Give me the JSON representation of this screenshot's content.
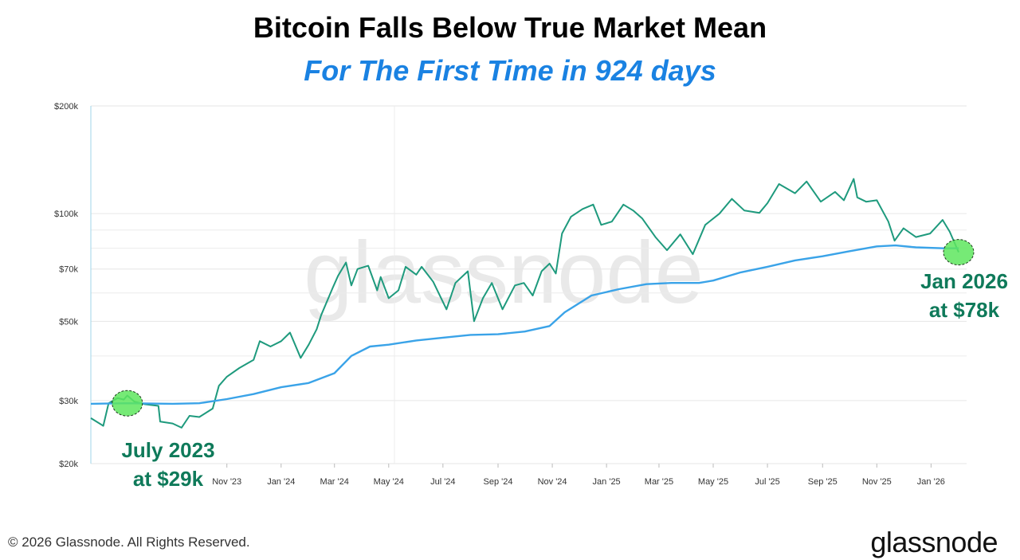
{
  "title": "Bitcoin Falls Below True Market Mean",
  "subtitle": "For The First Time in 924 days",
  "footer": {
    "copyright": "© 2026 Glassnode. All Rights Reserved.",
    "brand": "glassnode",
    "watermark": "glassnode"
  },
  "annotations": [
    {
      "text_line1": "July 2023",
      "text_line2": "at $29k",
      "x": "2023-07-12",
      "y": 29500
    },
    {
      "text_line1": "Jan 2026",
      "text_line2": "at $78k",
      "x": "2026-02-01",
      "y": 78000
    }
  ],
  "colors": {
    "price": "#1e9a7d",
    "mean": "#3aa3e8",
    "subtitle": "#1a82e2",
    "annotation_text": "#0f7a5a",
    "highlight": "#5ee65e"
  },
  "chart_data": {
    "type": "line",
    "y_scale": "log",
    "ylim": [
      20000,
      200000
    ],
    "xlim": [
      "2023-06-01",
      "2026-02-10"
    ],
    "grid": "horizontal",
    "y_ticks": [
      {
        "value": 200000,
        "label": "$200k"
      },
      {
        "value": 100000,
        "label": "$100k"
      },
      {
        "value": 70000,
        "label": "$70k"
      },
      {
        "value": 50000,
        "label": "$50k"
      },
      {
        "value": 30000,
        "label": "$30k"
      },
      {
        "value": 20000,
        "label": "$20k"
      }
    ],
    "y_extra_gridlines": [
      90000,
      80000,
      60000,
      40000
    ],
    "x_ticks": [
      {
        "date": "2023-11-01",
        "label": "Nov '23"
      },
      {
        "date": "2024-01-01",
        "label": "Jan '24"
      },
      {
        "date": "2024-03-01",
        "label": "Mar '24"
      },
      {
        "date": "2024-05-01",
        "label": "May '24"
      },
      {
        "date": "2024-07-01",
        "label": "Jul '24"
      },
      {
        "date": "2024-09-01",
        "label": "Sep '24"
      },
      {
        "date": "2024-11-01",
        "label": "Nov '24"
      },
      {
        "date": "2025-01-01",
        "label": "Jan '25"
      },
      {
        "date": "2025-03-01",
        "label": "Mar '25"
      },
      {
        "date": "2025-05-01",
        "label": "May '25"
      },
      {
        "date": "2025-07-01",
        "label": "Jul '25"
      },
      {
        "date": "2025-09-01",
        "label": "Sep '25"
      },
      {
        "date": "2025-11-01",
        "label": "Nov '25"
      },
      {
        "date": "2026-01-01",
        "label": "Jan '26"
      }
    ],
    "series": [
      {
        "key": "price",
        "points": [
          [
            "2023-06-01",
            26800
          ],
          [
            "2023-06-15",
            25500
          ],
          [
            "2023-06-21",
            29500
          ],
          [
            "2023-07-01",
            30500
          ],
          [
            "2023-07-08",
            30200
          ],
          [
            "2023-07-12",
            31000
          ],
          [
            "2023-07-20",
            29800
          ],
          [
            "2023-08-01",
            29300
          ],
          [
            "2023-08-16",
            29000
          ],
          [
            "2023-08-18",
            26200
          ],
          [
            "2023-09-01",
            25900
          ],
          [
            "2023-09-11",
            25200
          ],
          [
            "2023-09-20",
            27200
          ],
          [
            "2023-10-01",
            27000
          ],
          [
            "2023-10-16",
            28500
          ],
          [
            "2023-10-23",
            33000
          ],
          [
            "2023-11-01",
            35000
          ],
          [
            "2023-11-15",
            37000
          ],
          [
            "2023-12-01",
            39000
          ],
          [
            "2023-12-08",
            44000
          ],
          [
            "2023-12-20",
            42500
          ],
          [
            "2024-01-01",
            44000
          ],
          [
            "2024-01-11",
            46500
          ],
          [
            "2024-01-23",
            39500
          ],
          [
            "2024-02-01",
            43000
          ],
          [
            "2024-02-10",
            47500
          ],
          [
            "2024-02-15",
            52000
          ],
          [
            "2024-02-28",
            62000
          ],
          [
            "2024-03-05",
            67000
          ],
          [
            "2024-03-14",
            73000
          ],
          [
            "2024-03-20",
            63000
          ],
          [
            "2024-03-27",
            70000
          ],
          [
            "2024-04-08",
            71500
          ],
          [
            "2024-04-18",
            61000
          ],
          [
            "2024-04-22",
            66500
          ],
          [
            "2024-05-01",
            58000
          ],
          [
            "2024-05-12",
            61000
          ],
          [
            "2024-05-20",
            71000
          ],
          [
            "2024-06-01",
            67500
          ],
          [
            "2024-06-07",
            71000
          ],
          [
            "2024-06-20",
            64500
          ],
          [
            "2024-07-05",
            54000
          ],
          [
            "2024-07-15",
            64000
          ],
          [
            "2024-07-29",
            69000
          ],
          [
            "2024-08-05",
            50000
          ],
          [
            "2024-08-15",
            58000
          ],
          [
            "2024-08-25",
            64000
          ],
          [
            "2024-09-06",
            54000
          ],
          [
            "2024-09-20",
            63000
          ],
          [
            "2024-09-30",
            64000
          ],
          [
            "2024-10-10",
            59000
          ],
          [
            "2024-10-20",
            69000
          ],
          [
            "2024-10-29",
            72500
          ],
          [
            "2024-11-05",
            68000
          ],
          [
            "2024-11-12",
            88000
          ],
          [
            "2024-11-22",
            98000
          ],
          [
            "2024-12-05",
            103000
          ],
          [
            "2024-12-17",
            106000
          ],
          [
            "2024-12-26",
            93000
          ],
          [
            "2025-01-07",
            95000
          ],
          [
            "2025-01-20",
            106000
          ],
          [
            "2025-01-31",
            102000
          ],
          [
            "2025-02-10",
            97000
          ],
          [
            "2025-02-25",
            86000
          ],
          [
            "2025-03-10",
            79000
          ],
          [
            "2025-03-25",
            87500
          ],
          [
            "2025-04-08",
            77000
          ],
          [
            "2025-04-22",
            93000
          ],
          [
            "2025-05-08",
            100000
          ],
          [
            "2025-05-22",
            110000
          ],
          [
            "2025-06-05",
            102000
          ],
          [
            "2025-06-22",
            100500
          ],
          [
            "2025-07-01",
            107000
          ],
          [
            "2025-07-14",
            121000
          ],
          [
            "2025-08-01",
            114000
          ],
          [
            "2025-08-14",
            123000
          ],
          [
            "2025-08-30",
            108000
          ],
          [
            "2025-09-15",
            115000
          ],
          [
            "2025-09-25",
            109000
          ],
          [
            "2025-10-06",
            125000
          ],
          [
            "2025-10-10",
            111000
          ],
          [
            "2025-10-20",
            108000
          ],
          [
            "2025-11-01",
            109000
          ],
          [
            "2025-11-14",
            95000
          ],
          [
            "2025-11-21",
            84000
          ],
          [
            "2025-12-01",
            91000
          ],
          [
            "2025-12-15",
            86000
          ],
          [
            "2025-12-31",
            88000
          ],
          [
            "2026-01-14",
            96000
          ],
          [
            "2026-01-22",
            89000
          ],
          [
            "2026-02-01",
            78000
          ]
        ]
      },
      {
        "key": "true_market_mean",
        "points": [
          [
            "2023-06-01",
            29400
          ],
          [
            "2023-07-12",
            29500
          ],
          [
            "2023-09-01",
            29400
          ],
          [
            "2023-10-01",
            29500
          ],
          [
            "2023-11-01",
            30300
          ],
          [
            "2023-12-01",
            31300
          ],
          [
            "2024-01-01",
            32700
          ],
          [
            "2024-02-01",
            33600
          ],
          [
            "2024-03-01",
            35800
          ],
          [
            "2024-03-20",
            40000
          ],
          [
            "2024-04-10",
            42500
          ],
          [
            "2024-05-01",
            43000
          ],
          [
            "2024-06-01",
            44200
          ],
          [
            "2024-07-01",
            45000
          ],
          [
            "2024-08-01",
            45800
          ],
          [
            "2024-09-01",
            46000
          ],
          [
            "2024-10-01",
            46800
          ],
          [
            "2024-10-29",
            48500
          ],
          [
            "2024-11-15",
            53000
          ],
          [
            "2024-12-15",
            59000
          ],
          [
            "2025-01-15",
            61500
          ],
          [
            "2025-02-15",
            63500
          ],
          [
            "2025-03-15",
            64000
          ],
          [
            "2025-04-15",
            64000
          ],
          [
            "2025-05-01",
            65000
          ],
          [
            "2025-06-01",
            68500
          ],
          [
            "2025-07-01",
            71000
          ],
          [
            "2025-08-01",
            74000
          ],
          [
            "2025-09-01",
            76000
          ],
          [
            "2025-10-01",
            78500
          ],
          [
            "2025-11-01",
            81000
          ],
          [
            "2025-11-22",
            81500
          ],
          [
            "2025-12-15",
            80500
          ],
          [
            "2026-01-15",
            80000
          ],
          [
            "2026-02-01",
            80000
          ]
        ]
      }
    ]
  }
}
